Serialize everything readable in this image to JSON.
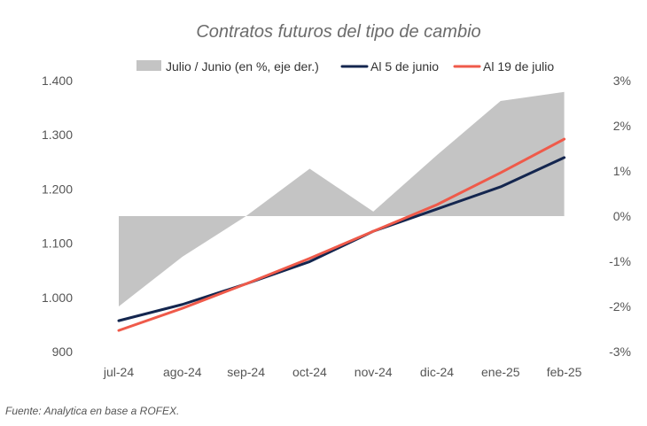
{
  "chart_data": {
    "type": "line",
    "title": "Contratos futuros del tipo de cambio",
    "categories": [
      "jul-24",
      "ago-24",
      "sep-24",
      "oct-24",
      "nov-24",
      "dic-24",
      "ene-25",
      "feb-25"
    ],
    "y_left": {
      "ylim": [
        900,
        1400
      ],
      "ticks": [
        900,
        1000,
        1100,
        1200,
        1300,
        1400
      ],
      "tick_labels": [
        "900",
        "1.000",
        "1.100",
        "1.200",
        "1.300",
        "1.400"
      ]
    },
    "y_right": {
      "ylim": [
        -3,
        3
      ],
      "ticks": [
        -3,
        -2,
        -1,
        0,
        1,
        2,
        3
      ],
      "tick_labels": [
        "-3%",
        "-2%",
        "-1%",
        "0%",
        "1%",
        "2%",
        "3%"
      ]
    },
    "series": [
      {
        "name": "Julio / Junio (en %, eje der.)",
        "kind": "area",
        "axis": "right",
        "color": "#c4c4c4",
        "values": [
          -2.0,
          -0.9,
          0.0,
          1.05,
          0.1,
          1.35,
          2.55,
          2.75
        ]
      },
      {
        "name": "Al 5 de junio",
        "kind": "line",
        "axis": "left",
        "color": "#14264f",
        "values": [
          957,
          987,
          1025,
          1066,
          1122,
          1163,
          1204,
          1258
        ]
      },
      {
        "name": "Al 19 de julio",
        "kind": "line",
        "axis": "left",
        "color": "#ef5a4a",
        "values": [
          939,
          980,
          1025,
          1072,
          1122,
          1171,
          1230,
          1292
        ]
      }
    ],
    "grid": false,
    "legend_position": "top"
  },
  "source": "Fuente: Analytica en base a ROFEX."
}
